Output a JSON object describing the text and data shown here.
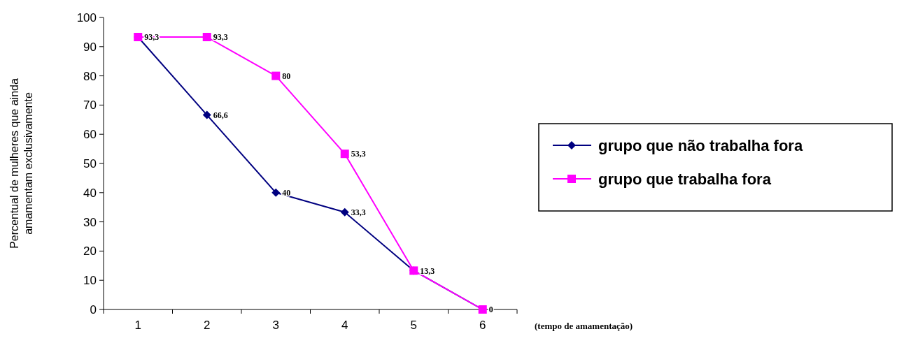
{
  "chart_data": {
    "type": "line",
    "ylabel": "Percentual de mulheres que ainda amamentam exclusivamente",
    "xlabel": "(tempo de amamentação)",
    "categories": [
      "1",
      "2",
      "3",
      "4",
      "5",
      "6"
    ],
    "ylim": [
      0,
      100
    ],
    "yticks": [
      0,
      10,
      20,
      30,
      40,
      50,
      60,
      70,
      80,
      90,
      100
    ],
    "grid": false,
    "legend": "right",
    "series": [
      {
        "name": "grupo que não trabalha fora",
        "color": "#000080",
        "marker": "diamond",
        "values": [
          93.3,
          66.6,
          40,
          33.3,
          13.3,
          0
        ],
        "value_labels": [
          null,
          "66,6",
          "40",
          "33,3",
          null,
          "0"
        ]
      },
      {
        "name": "grupo que trabalha fora",
        "color": "#ff00ff",
        "marker": "square",
        "values": [
          93.3,
          93.3,
          80,
          53.3,
          13.3,
          0
        ],
        "value_labels": [
          "93,3",
          "93,3",
          "80",
          "53,3",
          "13,3",
          null
        ]
      }
    ]
  }
}
